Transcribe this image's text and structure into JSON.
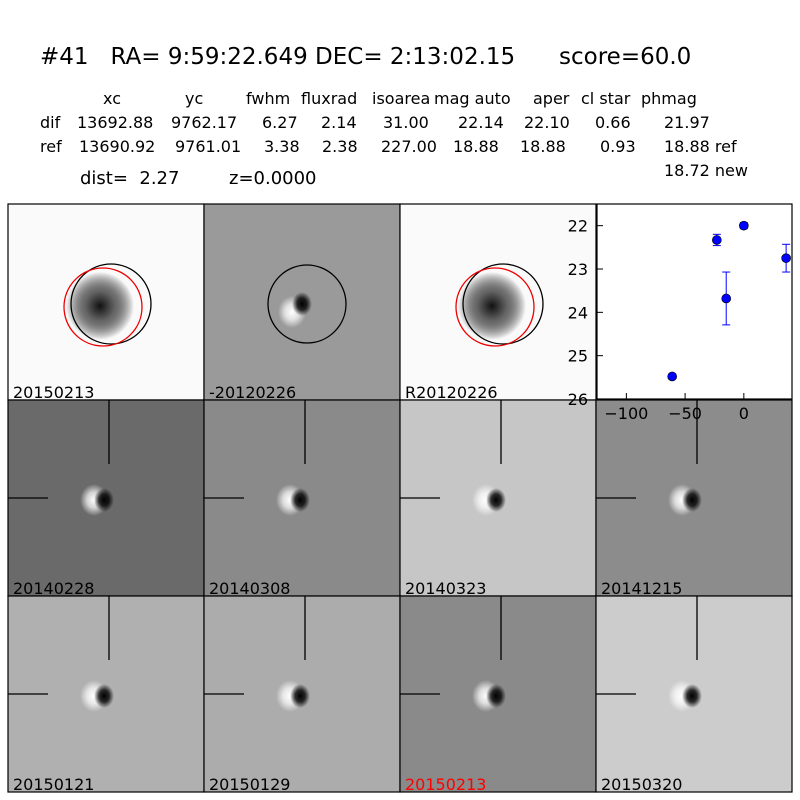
{
  "header": {
    "title": "#41   RA= 9:59:22.649 DEC= 2:13:02.15      score=60.0",
    "columns": [
      "xc",
      "yc",
      "fwhm",
      "fluxrad",
      "isoarea",
      "mag auto",
      "aper",
      "cl star",
      "phmag"
    ],
    "rows": [
      {
        "label": "dif",
        "values": [
          "13692.88",
          "9762.17",
          "6.27",
          "2.14",
          "31.00",
          "22.14",
          "22.10",
          "0.66",
          "21.97"
        ]
      },
      {
        "label": "ref",
        "values": [
          "13690.92",
          "9761.01",
          "3.38",
          "2.38",
          "227.00",
          "18.88",
          "18.88",
          "0.93",
          "18.88 ref"
        ]
      }
    ],
    "dist": "dist=  2.27",
    "z": "z=0.0000",
    "new": "18.72 new"
  },
  "panels": [
    {
      "label": "20150213"
    },
    {
      "label": "-20120226"
    },
    {
      "label": "R20120226"
    },
    {
      "label": "20140228"
    },
    {
      "label": "20140308"
    },
    {
      "label": "20140323"
    },
    {
      "label": "20141215"
    },
    {
      "label": "20150121"
    },
    {
      "label": "20150129"
    },
    {
      "label": "20150213",
      "color": "#ff0000"
    },
    {
      "label": "20150320"
    }
  ],
  "chart_data": {
    "type": "scatter",
    "x": [
      -61,
      -23,
      -15,
      0,
      36
    ],
    "values": [
      25.48,
      22.33,
      23.68,
      22.0,
      22.75
    ],
    "errors": [
      0.05,
      0.13,
      0.61,
      0.07,
      0.32
    ],
    "color": "#0000ff",
    "xlim": [
      -125,
      41
    ],
    "ylim": [
      26,
      21.5
    ],
    "xticks": [
      {
        "value": -100,
        "label": "−100"
      },
      {
        "value": -50,
        "label": "−50"
      },
      0
    ],
    "yticks": [
      22,
      23,
      24,
      25,
      26
    ]
  }
}
